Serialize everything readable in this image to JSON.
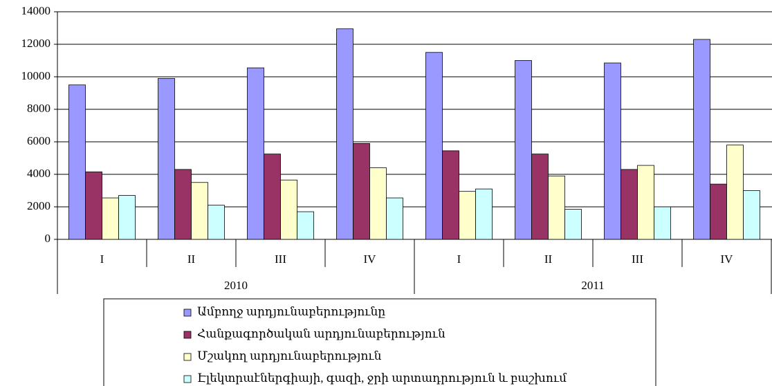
{
  "chart_data": {
    "type": "bar",
    "categories": [
      "I",
      "II",
      "III",
      "IV",
      "I",
      "II",
      "III",
      "IV"
    ],
    "category_groups": [
      "2010",
      "2011"
    ],
    "series": [
      {
        "name": "Ամբողջ արդյունաբերությունը",
        "color": "#9999ff",
        "values": [
          9500,
          9900,
          10550,
          12950,
          11500,
          11000,
          10850,
          12300
        ]
      },
      {
        "name": "Հանքագործական արդյունաբերություն",
        "color": "#993366",
        "values": [
          4150,
          4300,
          5250,
          5900,
          5450,
          5250,
          4300,
          3400
        ]
      },
      {
        "name": "Մշակող արդյունաբերություն",
        "color": "#ffffcc",
        "values": [
          2550,
          3500,
          3650,
          4400,
          2950,
          3900,
          4550,
          5800
        ]
      },
      {
        "name": "Էլեկտրաէներգիայի, գազի, ջրի արտադրություն և բաշխում",
        "color": "#ccffff",
        "values": [
          2700,
          2100,
          1700,
          2550,
          3100,
          1850,
          2000,
          3000
        ]
      }
    ],
    "ylim": [
      0,
      14000
    ],
    "yticks": [
      0,
      2000,
      4000,
      6000,
      8000,
      10000,
      12000,
      14000
    ],
    "grid": true
  }
}
